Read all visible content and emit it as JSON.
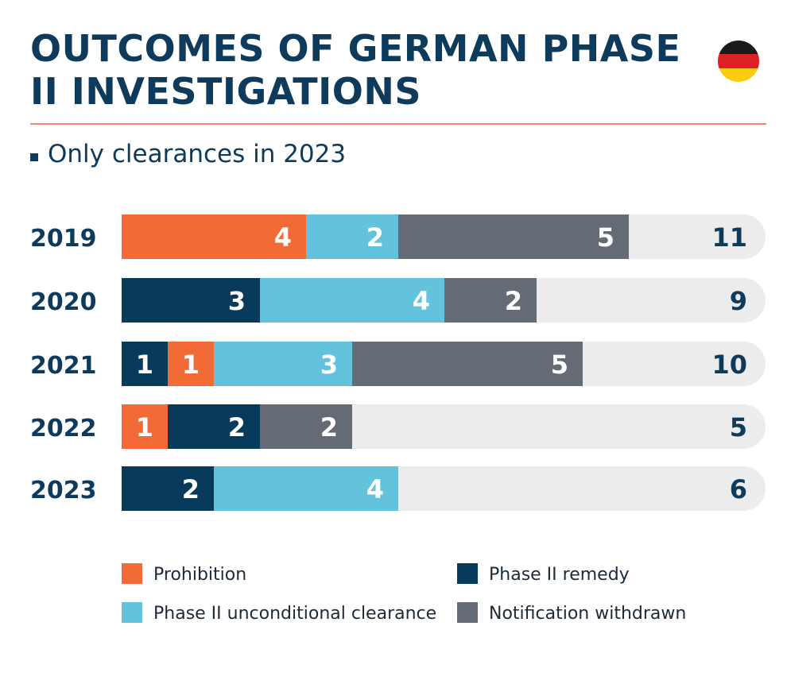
{
  "header": {
    "title": "OUTCOMES OF GERMAN PHASE II INVESTIGATIONS",
    "subtitle": "Only clearances in 2023"
  },
  "flag": {
    "icon": "germany-flag-icon",
    "colors": [
      "#1a1a1a",
      "#dd1f26",
      "#fcca0f"
    ]
  },
  "colors": {
    "prohibition": "#f26a35",
    "remedy": "#083a5c",
    "unconditional": "#63c3dd",
    "withdrawn": "#646b74",
    "track": "#ececec",
    "title": "#0e3a5c",
    "rule": "#f08a6a"
  },
  "chart_data": {
    "type": "bar",
    "orientation": "horizontal",
    "stacked": true,
    "title": "OUTCOMES OF GERMAN PHASE II INVESTIGATIONS",
    "subtitle": "Only clearances in 2023",
    "categories": [
      "2019",
      "2020",
      "2021",
      "2022",
      "2023"
    ],
    "series": [
      {
        "name": "Prohibition",
        "key": "prohibition",
        "values": [
          4,
          0,
          1,
          1,
          0
        ]
      },
      {
        "name": "Phase II remedy",
        "key": "remedy",
        "values": [
          0,
          3,
          1,
          2,
          2
        ]
      },
      {
        "name": "Phase II unconditional clearance",
        "key": "unconditional",
        "values": [
          2,
          4,
          3,
          0,
          4
        ]
      },
      {
        "name": "Notification withdrawn",
        "key": "withdrawn",
        "values": [
          5,
          2,
          5,
          2,
          0
        ]
      }
    ],
    "segment_order": [
      [
        "prohibition",
        "unconditional",
        "withdrawn"
      ],
      [
        "remedy",
        "unconditional",
        "withdrawn"
      ],
      [
        "remedy",
        "prohibition",
        "unconditional",
        "withdrawn"
      ],
      [
        "prohibition",
        "remedy",
        "withdrawn"
      ],
      [
        "remedy",
        "unconditional"
      ]
    ],
    "totals": [
      11,
      9,
      10,
      5,
      6
    ],
    "xlim": [
      0,
      14
    ],
    "legend": "bottom"
  },
  "legend": [
    {
      "label": "Prohibition",
      "key": "prohibition"
    },
    {
      "label": "Phase II remedy",
      "key": "remedy"
    },
    {
      "label": "Phase II unconditional clearance",
      "key": "unconditional"
    },
    {
      "label": "Notification withdrawn",
      "key": "withdrawn"
    }
  ]
}
